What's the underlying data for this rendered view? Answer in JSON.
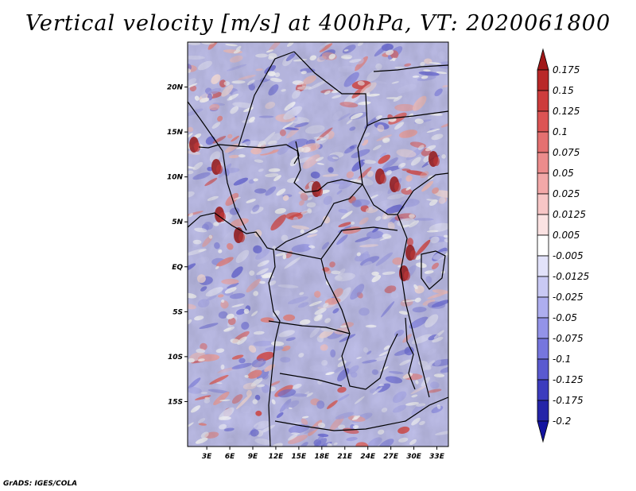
{
  "title": "Vertical velocity [m/s] at 400hPa, VT: 2020061800",
  "credit": "GrADS: IGES/COLA",
  "map": {
    "lat_labels": [
      "20N",
      "15N",
      "10N",
      "5N",
      "EQ",
      "5S",
      "10S",
      "15S"
    ],
    "lat_values": [
      20,
      15,
      10,
      5,
      0,
      -5,
      -10,
      -15
    ],
    "lon_labels": [
      "3E",
      "6E",
      "9E",
      "12E",
      "15E",
      "18E",
      "21E",
      "24E",
      "27E",
      "30E",
      "33E"
    ],
    "lon_values": [
      3,
      6,
      9,
      12,
      15,
      18,
      21,
      24,
      27,
      30,
      33
    ],
    "lon_range": [
      0.5,
      34.5
    ],
    "lat_range": [
      -20,
      25
    ]
  },
  "colorbar": {
    "labels": [
      "0.175",
      "0.15",
      "0.125",
      "0.1",
      "0.075",
      "0.05",
      "0.025",
      "0.0125",
      "0.005",
      "-0.005",
      "-0.0125",
      "-0.025",
      "-0.05",
      "-0.075",
      "-0.1",
      "-0.125",
      "-0.175",
      "-0.2"
    ],
    "colors": [
      "#a11818",
      "#b92828",
      "#cd3c3c",
      "#dc5454",
      "#e47070",
      "#ec8c8c",
      "#f2a8a8",
      "#f7c6c6",
      "#fbe2e2",
      "#ffffff",
      "#e2e2fa",
      "#c9c9f4",
      "#aeaeef",
      "#9393e8",
      "#7676de",
      "#5a5ad0",
      "#3c3cbe",
      "#2424a8",
      "#1414a0"
    ]
  }
}
